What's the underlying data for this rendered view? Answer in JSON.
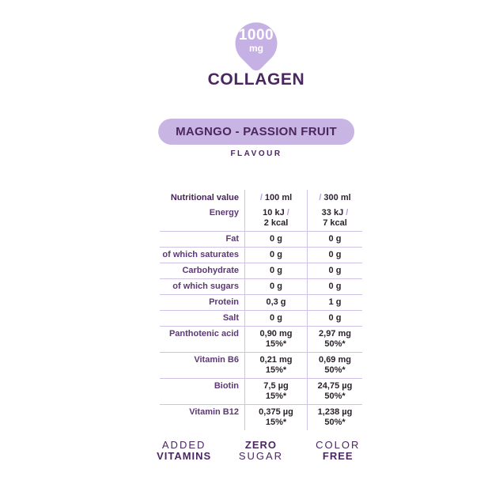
{
  "badge": {
    "amount": "1000",
    "unit": "mg"
  },
  "product": {
    "title": "COLLAGEN"
  },
  "flavor": {
    "name": "MAGNGO - PASSION FRUIT",
    "label": "FLAVOUR"
  },
  "table": {
    "header": {
      "label": "Nutritional value",
      "col100_slash": "/",
      "col100": "100 ml",
      "col300_slash": "/",
      "col300": "300 ml"
    },
    "rows": [
      {
        "label": "Energy",
        "v100": {
          "main": "10 kJ",
          "slash": " /",
          "sub": "2 kcal"
        },
        "v300": {
          "main": "33 kJ",
          "slash": " /",
          "sub": "7 kcal"
        }
      },
      {
        "label": "Fat",
        "v100": {
          "main": "0 g"
        },
        "v300": {
          "main": "0 g"
        }
      },
      {
        "label": "of which saturates",
        "v100": {
          "main": "0 g"
        },
        "v300": {
          "main": "0 g"
        }
      },
      {
        "label": "Carbohydrate",
        "v100": {
          "main": "0 g"
        },
        "v300": {
          "main": "0 g"
        }
      },
      {
        "label": "of which sugars",
        "v100": {
          "main": "0 g"
        },
        "v300": {
          "main": "0 g"
        }
      },
      {
        "label": "Protein",
        "v100": {
          "main": "0,3 g"
        },
        "v300": {
          "main": "1 g"
        }
      },
      {
        "label": "Salt",
        "v100": {
          "main": "0 g"
        },
        "v300": {
          "main": "0 g"
        }
      },
      {
        "label": "Panthotenic acid",
        "v100": {
          "main": "0,90 mg",
          "sub": "15%*"
        },
        "v300": {
          "main": "2,97 mg",
          "sub": "50%*"
        }
      },
      {
        "label": "Vitamin B6",
        "v100": {
          "main": "0,21 mg",
          "sub": "15%*"
        },
        "v300": {
          "main": "0,69 mg",
          "sub": "50%*"
        }
      },
      {
        "label": "Biotin",
        "v100": {
          "main": "7,5 µg",
          "sub": "15%*"
        },
        "v300": {
          "main": "24,75 µg",
          "sub": "50%*"
        }
      },
      {
        "label": "Vitamin B12",
        "v100": {
          "main": "0,375 µg",
          "sub": "15%*"
        },
        "v300": {
          "main": "1,238 µg",
          "sub": "50%*"
        }
      }
    ]
  },
  "features": [
    {
      "line1": "ADDED",
      "line2": "VITAMINS"
    },
    {
      "line1": "ZERO",
      "line2": "SUGAR"
    },
    {
      "line1": "COLOR",
      "line2": "FREE"
    }
  ],
  "colors": {
    "lavender": "#c5b1e3",
    "dark_purple": "#4b2760",
    "label_purple": "#5d3876",
    "value_text": "#2b222b",
    "divider": "#cfc2e6",
    "slash": "#b49fd8"
  }
}
